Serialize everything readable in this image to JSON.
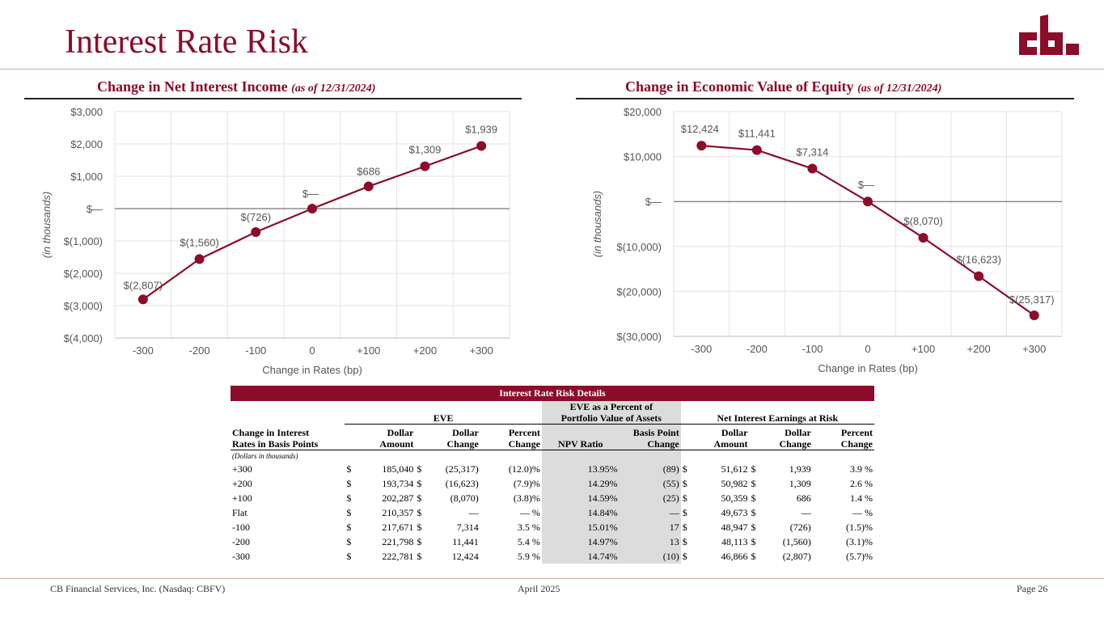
{
  "page": {
    "title": "Interest Rate Risk",
    "footer_left": "CB Financial Services, Inc. (Nasdaq: CBFV)",
    "footer_center": "April 2025",
    "footer_right": "Page 26",
    "accent_color": "#8b0d2a"
  },
  "charts": {
    "left_title": "Change in Net Interest Income",
    "left_asof": "(as of 12/31/2024)",
    "right_title": "Change in Economic Value of Equity",
    "right_asof": "(as of 12/31/2024)"
  },
  "chart_data": [
    {
      "type": "line",
      "title": "Change in Net Interest Income (as of 12/31/2024)",
      "xlabel": "Change in Rates (bp)",
      "ylabel": "(in thousands)",
      "categories": [
        "-300",
        "-200",
        "-100",
        "0",
        "+100",
        "+200",
        "+300"
      ],
      "values": [
        -2807,
        -1560,
        -726,
        0,
        686,
        1309,
        1939
      ],
      "data_labels": [
        "$(2,807)",
        "$(1,560)",
        "$(726)",
        "$—",
        "$686",
        "$1,309",
        "$1,939"
      ],
      "ylim": [
        -4000,
        3000
      ],
      "yticks": [
        3000,
        2000,
        1000,
        0,
        -1000,
        -2000,
        -3000,
        -4000
      ],
      "ytick_labels": [
        "$3,000",
        "$2,000",
        "$1,000",
        "$—",
        "$(1,000)",
        "$(2,000)",
        "$(3,000)",
        "$(4,000)"
      ],
      "color": "#8b0d2a",
      "grid": true
    },
    {
      "type": "line",
      "title": "Change in Economic Value of Equity (as of 12/31/2024)",
      "xlabel": "Change in Rates (bp)",
      "ylabel": "(in thousands)",
      "categories": [
        "-300",
        "-200",
        "-100",
        "0",
        "+100",
        "+200",
        "+300"
      ],
      "values": [
        12424,
        11441,
        7314,
        0,
        -8070,
        -16623,
        -25317
      ],
      "data_labels": [
        "$12,424",
        "$11,441",
        "$7,314",
        "$—",
        "$(8,070)",
        "$(16,623)",
        "$(25,317)"
      ],
      "ylim": [
        -30000,
        20000
      ],
      "yticks": [
        20000,
        10000,
        0,
        -10000,
        -20000,
        -30000
      ],
      "ytick_labels": [
        "$20,000",
        "$10,000",
        "$—",
        "$(10,000)",
        "$(20,000)",
        "$(30,000)"
      ],
      "color": "#8b0d2a",
      "grid": true
    }
  ],
  "table": {
    "banner": "Interest Rate Risk Details",
    "group_eve": "EVE",
    "group_pct_1": "EVE as a Percent of",
    "group_pct_2": "Portfolio Value of Assets",
    "group_nii": "Net Interest Earnings at Risk",
    "h_change_1": "Change in Interest",
    "h_change_2": "Rates in Basis Points",
    "h_dollar_amount_1": "Dollar",
    "h_dollar_amount_2": "Amount",
    "h_dollar_change_1": "Dollar",
    "h_dollar_change_2": "Change",
    "h_percent_change_1": "Percent",
    "h_percent_change_2": "Change",
    "h_npv": "NPV Ratio",
    "h_bp_1": "Basis Point",
    "h_bp_2": "Change",
    "note": "(Dollars in thousands)",
    "currency": "$",
    "rows": [
      {
        "rate": "+300",
        "eve_amt": "185,040",
        "eve_chg": "(25,317)",
        "eve_pct": "(12.0)%",
        "npv": "13.95%",
        "bp": "(89)",
        "nii_amt": "51,612",
        "nii_chg": "1,939",
        "nii_pct": "3.9 %"
      },
      {
        "rate": "+200",
        "eve_amt": "193,734",
        "eve_chg": "(16,623)",
        "eve_pct": "(7.9)%",
        "npv": "14.29%",
        "bp": "(55)",
        "nii_amt": "50,982",
        "nii_chg": "1,309",
        "nii_pct": "2.6 %"
      },
      {
        "rate": "+100",
        "eve_amt": "202,287",
        "eve_chg": "(8,070)",
        "eve_pct": "(3.8)%",
        "npv": "14.59%",
        "bp": "(25)",
        "nii_amt": "50,359",
        "nii_chg": "686",
        "nii_pct": "1.4 %"
      },
      {
        "rate": "Flat",
        "eve_amt": "210,357",
        "eve_chg": "—",
        "eve_pct": "— %",
        "npv": "14.84%",
        "bp": "—",
        "nii_amt": "49,673",
        "nii_chg": "—",
        "nii_pct": "— %"
      },
      {
        "rate": "-100",
        "eve_amt": "217,671",
        "eve_chg": "7,314",
        "eve_pct": "3.5 %",
        "npv": "15.01%",
        "bp": "17",
        "nii_amt": "48,947",
        "nii_chg": "(726)",
        "nii_pct": "(1.5)%"
      },
      {
        "rate": "-200",
        "eve_amt": "221,798",
        "eve_chg": "11,441",
        "eve_pct": "5.4 %",
        "npv": "14.97%",
        "bp": "13",
        "nii_amt": "48,113",
        "nii_chg": "(1,560)",
        "nii_pct": "(3.1)%"
      },
      {
        "rate": "-300",
        "eve_amt": "222,781",
        "eve_chg": "12,424",
        "eve_pct": "5.9 %",
        "npv": "14.74%",
        "bp": "(10)",
        "nii_amt": "46,866",
        "nii_chg": "(2,807)",
        "nii_pct": "(5.7)%"
      }
    ]
  }
}
